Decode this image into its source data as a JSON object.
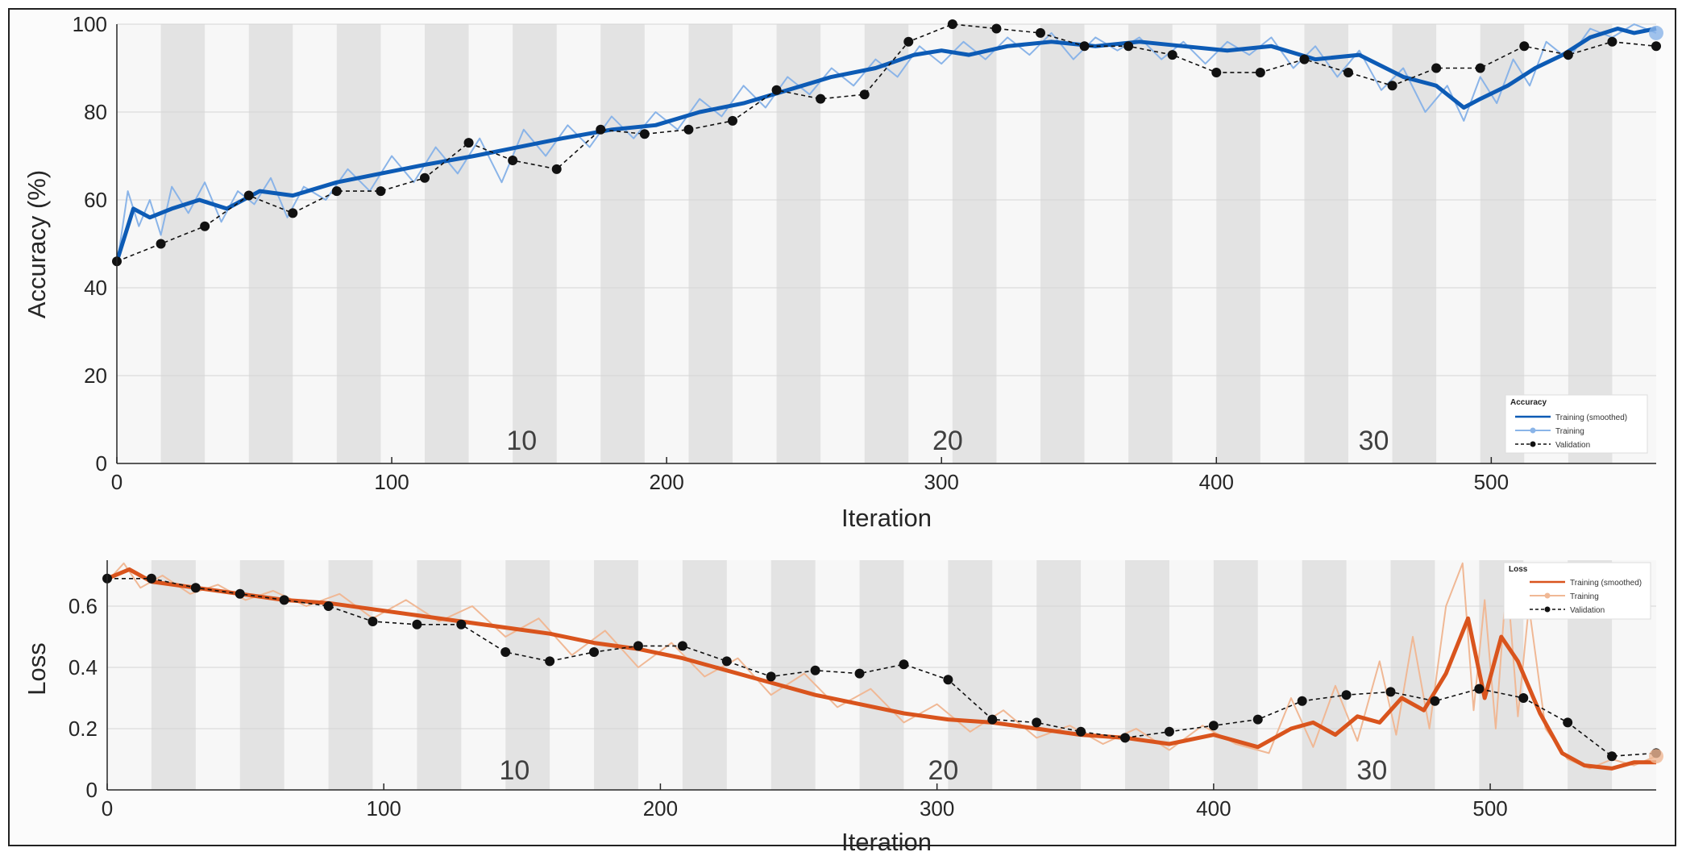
{
  "chart_data": [
    {
      "type": "line",
      "name": "accuracy",
      "ylabel": "Accuracy (%)",
      "xlabel": "Iteration",
      "xlim": [
        0,
        560
      ],
      "ylim": [
        0,
        100
      ],
      "yticks": [
        "0",
        "20",
        "40",
        "60",
        "80",
        "100"
      ],
      "xticks": [
        "0",
        "100",
        "200",
        "300",
        "400",
        "500"
      ],
      "epoch_labels": [
        "10",
        "20",
        "30"
      ],
      "legend": {
        "title": "Accuracy",
        "position": "bottom-right",
        "entries": [
          "Training (smoothed)",
          "Training",
          "Validation"
        ]
      },
      "colors": {
        "smoothed": "#0d5bb5",
        "raw": "#8ab4e8",
        "validation": "#111111",
        "band": "#e3e3e3"
      },
      "smoothed": {
        "x": [
          0,
          6,
          12,
          20,
          30,
          40,
          52,
          64,
          80,
          96,
          112,
          130,
          146,
          162,
          180,
          196,
          212,
          228,
          244,
          260,
          276,
          290,
          300,
          310,
          324,
          340,
          356,
          372,
          388,
          404,
          420,
          436,
          452,
          468,
          480,
          490,
          496,
          506,
          516,
          526,
          536,
          546,
          552,
          560
        ],
        "y": [
          46,
          58,
          56,
          58,
          60,
          58,
          62,
          61,
          64,
          66,
          68,
          70,
          72,
          74,
          76,
          77,
          80,
          82,
          85,
          88,
          90,
          93,
          94,
          93,
          95,
          96,
          95,
          96,
          95,
          94,
          95,
          92,
          93,
          88,
          86,
          81,
          83,
          86,
          90,
          93,
          97,
          99,
          98,
          99
        ]
      },
      "raw": {
        "x": [
          0,
          4,
          8,
          12,
          16,
          20,
          26,
          32,
          38,
          44,
          50,
          56,
          62,
          68,
          76,
          84,
          92,
          100,
          108,
          116,
          124,
          132,
          140,
          148,
          156,
          164,
          172,
          180,
          188,
          196,
          204,
          212,
          220,
          228,
          236,
          244,
          252,
          260,
          268,
          276,
          284,
          292,
          300,
          308,
          316,
          324,
          332,
          340,
          348,
          356,
          364,
          372,
          380,
          388,
          396,
          404,
          412,
          420,
          428,
          436,
          444,
          452,
          460,
          468,
          476,
          484,
          490,
          496,
          502,
          508,
          514,
          520,
          528,
          536,
          544,
          552,
          560
        ],
        "y": [
          45,
          62,
          54,
          60,
          52,
          63,
          57,
          64,
          55,
          62,
          59,
          65,
          56,
          63,
          60,
          67,
          62,
          70,
          64,
          72,
          66,
          74,
          64,
          76,
          70,
          77,
          72,
          79,
          74,
          80,
          76,
          83,
          79,
          86,
          81,
          88,
          84,
          90,
          86,
          92,
          88,
          95,
          91,
          96,
          92,
          97,
          93,
          98,
          92,
          97,
          94,
          97,
          92,
          96,
          91,
          96,
          93,
          97,
          90,
          95,
          88,
          94,
          85,
          90,
          80,
          86,
          78,
          88,
          82,
          92,
          86,
          96,
          92,
          99,
          97,
          100,
          98
        ]
      },
      "validation": {
        "x": [
          0,
          16,
          32,
          48,
          64,
          80,
          96,
          112,
          128,
          144,
          160,
          176,
          192,
          208,
          224,
          240,
          256,
          272,
          288,
          304,
          320,
          336,
          352,
          368,
          384,
          400,
          416,
          432,
          448,
          464,
          480,
          496,
          512,
          528,
          544,
          560
        ],
        "y": [
          46,
          50,
          54,
          61,
          57,
          62,
          62,
          65,
          73,
          69,
          67,
          76,
          75,
          76,
          78,
          85,
          83,
          84,
          96,
          100,
          99,
          98,
          95,
          95,
          93,
          89,
          89,
          92,
          89,
          86,
          90,
          90,
          95,
          93,
          96,
          95
        ]
      }
    },
    {
      "type": "line",
      "name": "loss",
      "ylabel": "Loss",
      "xlabel": "Iteration",
      "xlim": [
        0,
        560
      ],
      "ylim": [
        0,
        0.75
      ],
      "yticks": [
        "0",
        "0.2",
        "0.4",
        "0.6"
      ],
      "xticks": [
        "0",
        "100",
        "200",
        "300",
        "400",
        "500"
      ],
      "epoch_labels": [
        "10",
        "20",
        "30"
      ],
      "legend": {
        "title": "Loss",
        "position": "top-right",
        "entries": [
          "Training (smoothed)",
          "Training",
          "Validation"
        ]
      },
      "colors": {
        "smoothed": "#d9541d",
        "raw": "#f0b895",
        "validation": "#111111",
        "band": "#e3e3e3"
      },
      "smoothed": {
        "x": [
          0,
          8,
          16,
          32,
          48,
          64,
          80,
          96,
          112,
          128,
          144,
          160,
          176,
          192,
          208,
          224,
          240,
          256,
          272,
          288,
          304,
          320,
          336,
          352,
          368,
          384,
          400,
          416,
          428,
          436,
          444,
          452,
          460,
          468,
          476,
          484,
          492,
          498,
          504,
          510,
          518,
          526,
          534,
          544,
          552,
          560
        ],
        "y": [
          0.69,
          0.72,
          0.68,
          0.66,
          0.64,
          0.62,
          0.61,
          0.59,
          0.57,
          0.55,
          0.53,
          0.51,
          0.48,
          0.46,
          0.43,
          0.39,
          0.35,
          0.31,
          0.28,
          0.25,
          0.23,
          0.22,
          0.2,
          0.18,
          0.17,
          0.15,
          0.18,
          0.14,
          0.2,
          0.22,
          0.18,
          0.24,
          0.22,
          0.3,
          0.26,
          0.38,
          0.56,
          0.3,
          0.5,
          0.42,
          0.25,
          0.12,
          0.08,
          0.07,
          0.09,
          0.09
        ]
      },
      "raw": {
        "x": [
          0,
          6,
          12,
          20,
          30,
          40,
          50,
          60,
          72,
          84,
          96,
          108,
          120,
          132,
          144,
          156,
          168,
          180,
          192,
          204,
          216,
          228,
          240,
          252,
          264,
          276,
          288,
          300,
          312,
          324,
          336,
          348,
          360,
          372,
          384,
          396,
          408,
          420,
          428,
          436,
          444,
          452,
          460,
          466,
          472,
          478,
          484,
          490,
          494,
          498,
          502,
          506,
          510,
          514,
          520,
          528,
          536,
          544,
          552,
          560
        ],
        "y": [
          0.68,
          0.74,
          0.66,
          0.7,
          0.64,
          0.67,
          0.62,
          0.65,
          0.6,
          0.64,
          0.56,
          0.62,
          0.55,
          0.6,
          0.5,
          0.56,
          0.44,
          0.52,
          0.4,
          0.48,
          0.37,
          0.43,
          0.31,
          0.38,
          0.27,
          0.33,
          0.22,
          0.28,
          0.19,
          0.26,
          0.17,
          0.21,
          0.15,
          0.2,
          0.13,
          0.21,
          0.15,
          0.12,
          0.3,
          0.14,
          0.34,
          0.16,
          0.42,
          0.18,
          0.5,
          0.2,
          0.6,
          0.74,
          0.26,
          0.62,
          0.2,
          0.7,
          0.24,
          0.6,
          0.2,
          0.1,
          0.07,
          0.1,
          0.08,
          0.11
        ]
      },
      "validation": {
        "x": [
          0,
          16,
          32,
          48,
          64,
          80,
          96,
          112,
          128,
          144,
          160,
          176,
          192,
          208,
          224,
          240,
          256,
          272,
          288,
          304,
          320,
          336,
          352,
          368,
          384,
          400,
          416,
          432,
          448,
          464,
          480,
          496,
          512,
          528,
          544,
          560
        ],
        "y": [
          0.69,
          0.69,
          0.66,
          0.64,
          0.62,
          0.6,
          0.55,
          0.54,
          0.54,
          0.45,
          0.42,
          0.45,
          0.47,
          0.47,
          0.42,
          0.37,
          0.39,
          0.38,
          0.41,
          0.36,
          0.23,
          0.22,
          0.19,
          0.17,
          0.19,
          0.21,
          0.23,
          0.29,
          0.31,
          0.32,
          0.29,
          0.33,
          0.3,
          0.22,
          0.11,
          0.12
        ]
      }
    }
  ]
}
